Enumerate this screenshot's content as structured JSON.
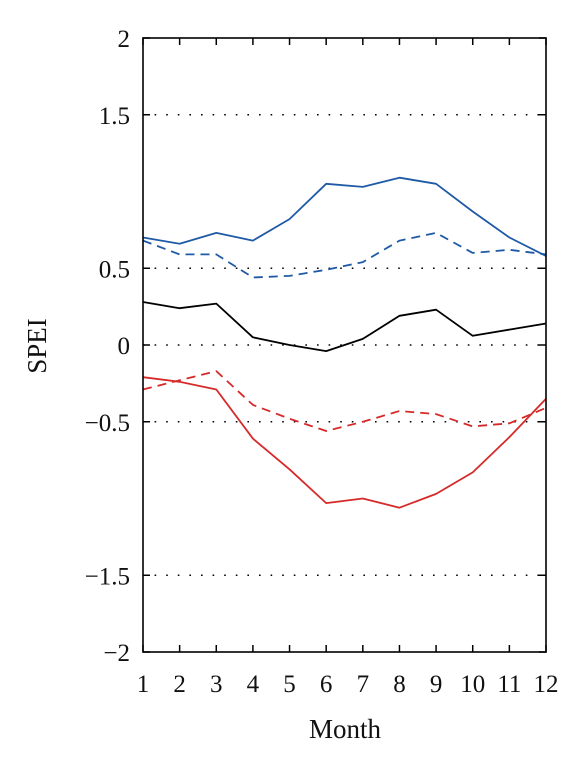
{
  "chart_data": {
    "type": "line",
    "title": "",
    "xlabel": "Month",
    "ylabel": "SPEI",
    "x": [
      1,
      2,
      3,
      4,
      5,
      6,
      7,
      8,
      9,
      10,
      11,
      12
    ],
    "x_tick_labels": [
      "1",
      "2",
      "3",
      "4",
      "5",
      "6",
      "7",
      "8",
      "9",
      "10",
      "11",
      "12"
    ],
    "xlim": [
      1,
      12
    ],
    "y_ticks": [
      2,
      1.5,
      0.5,
      0,
      -0.5,
      -1.5,
      -2
    ],
    "y_tick_labels": [
      "2",
      "1.5",
      "0.5",
      "0",
      "−0.5",
      "−1.5",
      "−2"
    ],
    "ylim": [
      -2,
      2
    ],
    "grid": "dotted horizontal lines at labeled y ticks",
    "legend": "none",
    "series": [
      {
        "color": "#1f5aa6",
        "style": "solid",
        "values": [
          0.7,
          0.66,
          0.73,
          0.68,
          0.82,
          1.05,
          1.03,
          1.09,
          1.05,
          0.87,
          0.7,
          0.58
        ]
      },
      {
        "color": "#1f5aa6",
        "style": "dashed",
        "values": [
          0.68,
          0.59,
          0.59,
          0.44,
          0.45,
          0.49,
          0.54,
          0.68,
          0.73,
          0.6,
          0.62,
          0.59
        ]
      },
      {
        "color": "#000000",
        "style": "solid",
        "values": [
          0.28,
          0.24,
          0.27,
          0.05,
          0.0,
          -0.04,
          0.04,
          0.19,
          0.23,
          0.06,
          0.1,
          0.14
        ]
      },
      {
        "color": "#d62a2a",
        "style": "dashed",
        "values": [
          -0.29,
          -0.23,
          -0.17,
          -0.39,
          -0.48,
          -0.56,
          -0.5,
          -0.43,
          -0.45,
          -0.53,
          -0.51,
          -0.41
        ]
      },
      {
        "color": "#d62a2a",
        "style": "solid",
        "values": [
          -0.21,
          -0.24,
          -0.29,
          -0.61,
          -0.81,
          -1.03,
          -1.0,
          -1.06,
          -0.97,
          -0.83,
          -0.6,
          -0.35
        ]
      }
    ]
  }
}
